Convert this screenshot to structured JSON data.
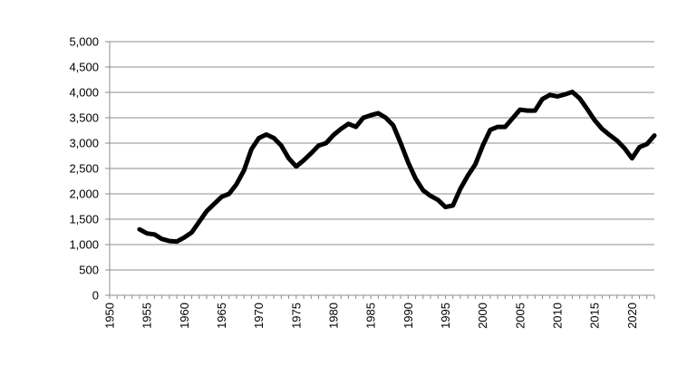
{
  "chart_data": {
    "type": "line",
    "title": "",
    "xlabel": "",
    "ylabel": "",
    "xlim": [
      1950,
      2023
    ],
    "ylim": [
      0,
      5000
    ],
    "x_ticks": [
      "1950",
      "1955",
      "1960",
      "1965",
      "1970",
      "1975",
      "1980",
      "1985",
      "1990",
      "1995",
      "2000",
      "2005",
      "2010",
      "2015",
      "2020"
    ],
    "y_ticks": [
      "0",
      "500",
      "1,000",
      "1,500",
      "2,000",
      "2,500",
      "3,000",
      "3,500",
      "4,000",
      "4,500",
      "5,000"
    ],
    "grid": "horizontal",
    "legend": "none",
    "series": [
      {
        "color": "#000000",
        "x": [
          1954,
          1955,
          1956,
          1957,
          1958,
          1959,
          1960,
          1961,
          1962,
          1963,
          1964,
          1965,
          1966,
          1967,
          1968,
          1969,
          1970,
          1971,
          1972,
          1973,
          1974,
          1975,
          1976,
          1977,
          1978,
          1979,
          1980,
          1981,
          1982,
          1983,
          1984,
          1985,
          1986,
          1987,
          1988,
          1989,
          1990,
          1991,
          1992,
          1993,
          1994,
          1995,
          1996,
          1997,
          1998,
          1999,
          2000,
          2001,
          2002,
          2003,
          2004,
          2005,
          2006,
          2007,
          2008,
          2009,
          2010,
          2011,
          2012,
          2013,
          2014,
          2015,
          2016,
          2017,
          2018,
          2019,
          2020,
          2021,
          2022,
          2023
        ],
        "values": [
          1300,
          1220,
          1200,
          1110,
          1070,
          1060,
          1140,
          1240,
          1450,
          1660,
          1800,
          1940,
          2000,
          2190,
          2460,
          2880,
          3100,
          3170,
          3100,
          2950,
          2700,
          2540,
          2660,
          2800,
          2950,
          3000,
          3160,
          3280,
          3380,
          3320,
          3500,
          3550,
          3590,
          3500,
          3350,
          3000,
          2620,
          2300,
          2070,
          1960,
          1880,
          1740,
          1770,
          2100,
          2360,
          2580,
          2950,
          3260,
          3320,
          3320,
          3490,
          3660,
          3640,
          3640,
          3870,
          3950,
          3920,
          3960,
          4010,
          3880,
          3670,
          3450,
          3280,
          3160,
          3050,
          2900,
          2700,
          2920,
          2980,
          3150
        ]
      }
    ]
  }
}
